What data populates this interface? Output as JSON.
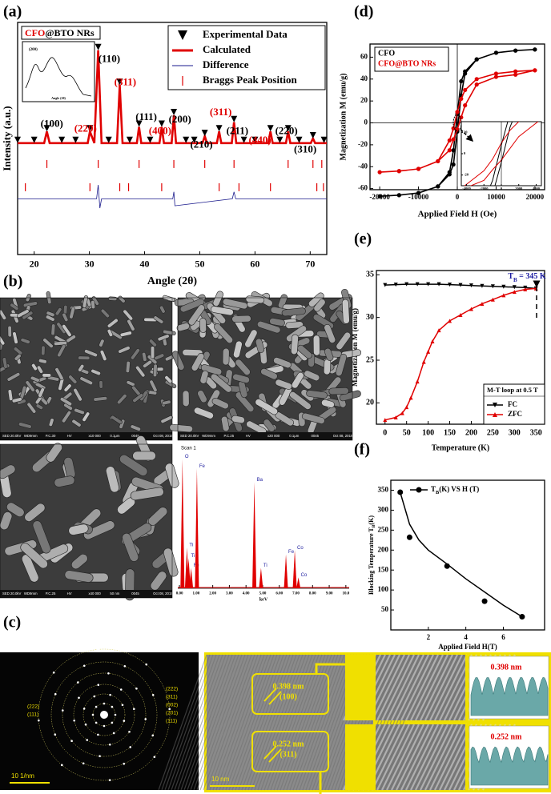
{
  "chart_data": [
    {
      "type": "xrd",
      "panel": "(a)",
      "x_label": "Angle (2θ)",
      "y_label": "Intensity (a.u.)",
      "xlim": [
        17,
        73
      ],
      "xticks": [
        20,
        30,
        40,
        50,
        60,
        70
      ],
      "ylim": [
        0,
        100
      ],
      "sample": [
        "CFO",
        "@BTO NRs"
      ],
      "sample_colors": [
        "#e00000",
        "#000000"
      ],
      "series": [
        {
          "name": "Experimental Data",
          "color": "#000000",
          "marker": "triangle-down",
          "x": [
            17,
            20,
            22.3,
            25,
            27.5,
            30.1,
            31.6,
            33.5,
            35.5,
            37.3,
            39.0,
            41,
            43.1,
            45.3,
            47.5,
            49,
            50.9,
            53.5,
            56.2,
            58,
            60,
            62.8,
            64.5,
            66.0,
            68,
            70.5,
            72.5
          ],
          "values": [
            48,
            48,
            53,
            48,
            48,
            53,
            88,
            48,
            73,
            48,
            55,
            48,
            55,
            60,
            48,
            48,
            51,
            53,
            57,
            48,
            48,
            53,
            48,
            53,
            48,
            50,
            48
          ]
        },
        {
          "name": "Calculated",
          "color": "#e00000",
          "x": [
            17,
            21.8,
            22.3,
            22.8,
            29.7,
            30.1,
            30.9,
            31.6,
            32.2,
            35.0,
            35.5,
            36.0,
            38.6,
            39.0,
            39.4,
            42.7,
            43.1,
            43.5,
            44.9,
            45.3,
            45.7,
            50.5,
            50.9,
            51.3,
            53.1,
            53.5,
            53.9,
            55.8,
            56.2,
            56.6,
            62.4,
            62.8,
            63.2,
            65.6,
            66.0,
            66.4,
            70.1,
            70.5,
            70.9,
            73
          ],
          "values": [
            48,
            48,
            53,
            48,
            48,
            53,
            48,
            88,
            48,
            48,
            73,
            48,
            48,
            55,
            48,
            48,
            55,
            48,
            48,
            60,
            48,
            48,
            51,
            48,
            48,
            53,
            48,
            48,
            57,
            48,
            48,
            53,
            48,
            48,
            53,
            48,
            48,
            50,
            48,
            48
          ]
        },
        {
          "name": "Difference",
          "color": "#1a1a8c",
          "x": [
            17,
            31.3,
            31.6,
            31.9,
            32.2,
            45.1,
            45.3,
            45.5,
            55.9,
            56.2,
            56.5,
            73
          ],
          "values": [
            24,
            24,
            30,
            20,
            24,
            24,
            27,
            21,
            24,
            27,
            24,
            24
          ]
        },
        {
          "name": "Braggs Peak Position",
          "color": "#e00000",
          "rows": [
            {
              "y": 39,
              "x": [
                22.3,
                31.6,
                39.0,
                45.3,
                50.9,
                56.2,
                66.0,
                70.5,
                72.1
              ]
            },
            {
              "y": 29,
              "x": [
                18.4,
                30.1,
                35.5,
                37.1,
                43.1,
                53.5,
                57.1,
                62.8,
                71.2,
                72.4
              ]
            }
          ]
        }
      ],
      "peak_labels": [
        {
          "text": "(100)",
          "x": 23.2,
          "y": 56,
          "color": "#000000"
        },
        {
          "text": "(220)",
          "x": 29.3,
          "y": 54,
          "color": "#e00000"
        },
        {
          "text": "(110)",
          "x": 33.6,
          "y": 84,
          "color": "#000000"
        },
        {
          "text": "(311)",
          "x": 36.5,
          "y": 74,
          "color": "#e00000"
        },
        {
          "text": "(111)",
          "x": 40.3,
          "y": 59,
          "color": "#000000"
        },
        {
          "text": "(400)",
          "x": 42.8,
          "y": 53,
          "color": "#e00000"
        },
        {
          "text": "(200)",
          "x": 46.4,
          "y": 58,
          "color": "#000000"
        },
        {
          "text": "(210)",
          "x": 50.3,
          "y": 47,
          "color": "#000000"
        },
        {
          "text": "(311)",
          "x": 53.8,
          "y": 61,
          "color": "#e00000"
        },
        {
          "text": "(211)",
          "x": 56.8,
          "y": 53,
          "color": "#000000"
        },
        {
          "text": "(440)",
          "x": 60.9,
          "y": 49,
          "color": "#e00000"
        },
        {
          "text": "(220)",
          "x": 65.7,
          "y": 53,
          "color": "#000000"
        },
        {
          "text": "(310)",
          "x": 69.1,
          "y": 45,
          "color": "#000000"
        }
      ],
      "inset_labels": [
        "(200)",
        "Angle (2θ)"
      ]
    },
    {
      "type": "loop",
      "panel": "(d)",
      "x_label": "Applied Field H (Oe)",
      "y_label": "Magnetization M (emu/g)",
      "xlim": [
        -22500,
        22500
      ],
      "xticks": [
        -20000,
        -10000,
        0,
        10000,
        20000
      ],
      "ylim": [
        -61,
        72
      ],
      "yticks": [
        -60,
        -40,
        -20,
        0,
        20,
        40,
        60
      ],
      "series": [
        {
          "name": "CFO",
          "color": "#000000",
          "marker": "circle",
          "x": [
            20000,
            15000,
            10000,
            5000,
            2000,
            1000,
            0,
            -1000,
            -2000,
            -5000,
            -10000,
            -15000,
            -20000,
            -15000,
            -10000,
            -5000,
            -2000,
            -1000,
            0,
            1000,
            2000,
            5000,
            10000,
            15000,
            20000
          ],
          "values": [
            67,
            66,
            64,
            58,
            47,
            38,
            8,
            -25,
            -45,
            -58,
            -64,
            -66,
            -67,
            -66,
            -64,
            -58,
            -47,
            -38,
            -8,
            25,
            45,
            58,
            64,
            66,
            67
          ]
        },
        {
          "name": "CFO@BTO NRs",
          "color": "#e00000",
          "marker": "circle",
          "x": [
            20000,
            15000,
            10000,
            5000,
            2000,
            1000,
            0,
            -1000,
            -2000,
            -5000,
            -10000,
            -15000,
            -20000,
            -15000,
            -10000,
            -5000,
            -2000,
            -1000,
            0,
            1000,
            2000,
            5000,
            10000,
            15000,
            20000
          ],
          "values": [
            48,
            47,
            45,
            40,
            30,
            22,
            10,
            -5,
            -16,
            -35,
            -42,
            -44,
            -45,
            -44,
            -42,
            -35,
            -25,
            -15,
            -6,
            5,
            16,
            35,
            42,
            44,
            48
          ]
        }
      ],
      "inset": {
        "xlim": [
          -4600,
          4600
        ],
        "xticks": [
          -4000,
          -2000,
          0,
          2000,
          4000
        ],
        "ylim": [
          -30,
          30
        ],
        "yticks": [
          -20,
          0,
          20
        ]
      }
    },
    {
      "type": "line",
      "panel": "(e)",
      "x_label": "Temperature (K)",
      "y_label": "Magnetization M (emu/g)",
      "xlim": [
        -20,
        370
      ],
      "xticks": [
        0,
        50,
        100,
        150,
        200,
        250,
        300,
        350
      ],
      "ylim": [
        17.5,
        35.5
      ],
      "yticks": [
        20,
        25,
        30,
        35
      ],
      "legend_title": "M-T loop at 0.5 T",
      "annotation": [
        "T",
        "B",
        " = 345 K"
      ],
      "annotation_color": "#1a1aa0",
      "series": [
        {
          "name": "FC",
          "color": "#000000",
          "marker": "triangle-down",
          "x": [
            0,
            25,
            50,
            75,
            100,
            125,
            150,
            175,
            200,
            225,
            250,
            275,
            300,
            325,
            350
          ],
          "values": [
            33.8,
            33.85,
            33.9,
            33.9,
            33.9,
            33.9,
            33.85,
            33.8,
            33.75,
            33.7,
            33.65,
            33.6,
            33.55,
            33.5,
            33.4
          ]
        },
        {
          "name": "ZFC",
          "color": "#e00000",
          "marker": "triangle-up",
          "x": [
            0,
            25,
            40,
            50,
            60,
            75,
            90,
            100,
            110,
            125,
            150,
            175,
            200,
            225,
            250,
            275,
            300,
            325,
            350
          ],
          "values": [
            18,
            18.3,
            18.8,
            19.5,
            20.6,
            22.5,
            24.8,
            26.0,
            27.2,
            28.5,
            29.6,
            30.3,
            31.0,
            31.6,
            32.1,
            32.6,
            33.0,
            33.3,
            33.4
          ]
        }
      ]
    },
    {
      "type": "scatter",
      "panel": "(f)",
      "x_label": "Applied Field H(T)",
      "y_label": [
        "Blocking Temperature T",
        "B",
        "(K)"
      ],
      "xlim": [
        0,
        8.2
      ],
      "xticks": [
        2,
        4,
        6
      ],
      "ylim": [
        0,
        375
      ],
      "yticks": [
        50,
        100,
        150,
        200,
        250,
        300,
        350
      ],
      "series": [
        {
          "name": [
            "T",
            "B",
            "(K) VS H (T)"
          ],
          "color": "#000000",
          "marker": "circle",
          "x": [
            0.5,
            1,
            3,
            5,
            7
          ],
          "values": [
            345,
            232,
            160,
            72,
            33
          ],
          "fit": {
            "x": [
              0.5,
              1,
              1.5,
              2,
              3,
              4,
              5,
              6,
              7
            ],
            "values": [
              345,
              265,
              225,
              200,
              165,
              128,
              95,
              62,
              33
            ]
          }
        }
      ]
    },
    {
      "type": "spectrum",
      "title": "Scan 1",
      "x_label": "keV",
      "color": "#e00000",
      "label_color": "#2020a0",
      "xlim": [
        -0.1,
        10.2
      ],
      "ylim": [
        0,
        100
      ],
      "xticks": [
        {
          "value": 0,
          "label": "0.00"
        },
        {
          "value": 1,
          "label": "1.00"
        },
        {
          "value": 2,
          "label": "2.00"
        },
        {
          "value": 3,
          "label": "3.00"
        },
        {
          "value": 4,
          "label": "4.00"
        },
        {
          "value": 5,
          "label": "5.00"
        },
        {
          "value": 6,
          "label": "6.00"
        },
        {
          "value": 7,
          "label": "7.00"
        },
        {
          "value": 8,
          "label": "8.00"
        },
        {
          "value": 9,
          "label": "9.00"
        },
        {
          "value": 10,
          "label": "10.0"
        }
      ],
      "x": [
        0.18,
        0.45,
        0.55,
        0.7,
        1.05,
        4.5,
        4.9,
        6.4,
        6.93,
        7.15
      ],
      "values": [
        95,
        30,
        22,
        15,
        88,
        78,
        15,
        25,
        28,
        8
      ],
      "labels": [
        "O",
        "Ti",
        "Ti",
        "Fe",
        "Fe",
        "Ba",
        "Ti",
        "Fe",
        "Co",
        "Co"
      ]
    }
  ],
  "panel_b": "(b)",
  "sem": [
    {
      "caption": [
        "SED 20.0kV",
        "WD9mm",
        "P.C.30",
        "HV",
        "x10 000",
        "0.1μm",
        "0045",
        "Oct 08, 2019"
      ]
    },
    {
      "caption": [
        "SED 20.0kV",
        "WD9mm",
        "P.C.25",
        "HV",
        "x20 000",
        "0.1μm",
        "0045",
        "Oct 08, 2019"
      ]
    },
    {
      "caption": [
        "SED 20.0kV",
        "WD9mm",
        "P.C.25",
        "HV",
        "x40 000",
        "50 nm",
        "0045",
        "Oct 08, 2019"
      ]
    }
  ],
  "panel_c": "(c)",
  "saed": {
    "scale": "10 1/nm",
    "right_labels": [
      "(222)",
      "(311)",
      "(002)",
      "(201)",
      "(111)"
    ],
    "left_labels": [
      "(222)",
      "(111)"
    ]
  },
  "hrtem": {
    "scale": "10 nm",
    "boxes": [
      [
        "0.398 nm",
        "(100)"
      ],
      [
        "0.252 nm",
        "(311)"
      ]
    ],
    "profiles": [
      "0.398 nm",
      "0.252 nm"
    ]
  }
}
